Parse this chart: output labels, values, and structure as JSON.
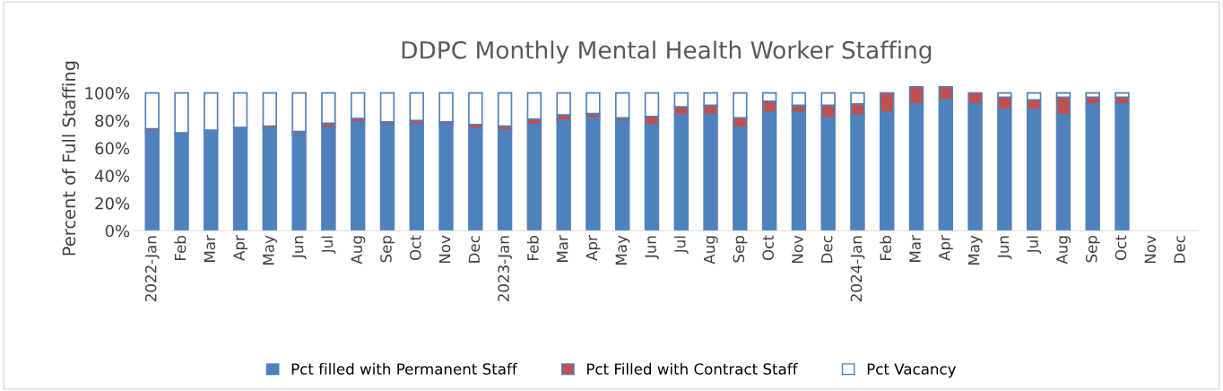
{
  "chart_data": {
    "type": "bar",
    "title": "DDPC Monthly Mental Health Worker Staffing",
    "ylabel": "Percent of Full Staffing",
    "categories": [
      "2022-Jan",
      "Feb",
      "Mar",
      "Apr",
      "May",
      "Jun",
      "Jul",
      "Aug",
      "Sep",
      "Oct",
      "Nov",
      "Dec",
      "2023-Jan",
      "Feb",
      "Mar",
      "Apr",
      "May",
      "Jun",
      "Jul",
      "Aug",
      "Sep",
      "Oct",
      "Nov",
      "Dec",
      "2024-Jan",
      "Feb",
      "Mar",
      "Apr",
      "May",
      "Jun",
      "Jul",
      "Aug",
      "Sep",
      "Oct",
      "Nov",
      "Dec"
    ],
    "series": [
      {
        "name": "Pct filled with Permanent Staff",
        "color": "#4f81bd",
        "values": [
          72,
          70,
          73,
          75,
          74,
          70,
          75,
          79,
          77,
          77,
          77,
          74,
          73,
          77,
          80,
          82,
          80,
          77,
          84,
          84,
          75,
          86,
          86,
          82,
          84,
          86,
          92,
          95,
          92,
          88,
          88,
          84,
          92,
          92,
          null,
          null
        ]
      },
      {
        "name": "Pct Filled with Contract Staff",
        "color": "#c0504d",
        "values": [
          2,
          1,
          0,
          0,
          2,
          2,
          3,
          2.5,
          2,
          3,
          2,
          3,
          3,
          4,
          4,
          3,
          2,
          6,
          6,
          7,
          7,
          8,
          5,
          9,
          8,
          14,
          12.5,
          9.5,
          8,
          9,
          7,
          13,
          5,
          5,
          null,
          null
        ]
      },
      {
        "name": "Pct Vacancy",
        "color": "#ffffff",
        "values": [
          26,
          29,
          27,
          25,
          24,
          28,
          22,
          18.5,
          21,
          20,
          21,
          23,
          24,
          19,
          16,
          15,
          18,
          17,
          10,
          9,
          18,
          6,
          9,
          9,
          8,
          0,
          0,
          0,
          0,
          3,
          5,
          3,
          3,
          3,
          null,
          null
        ]
      }
    ],
    "stacked": true,
    "ylim": [
      0,
      105
    ],
    "yticks": [
      {
        "value": 0,
        "label": "0%"
      },
      {
        "value": 20,
        "label": "20%"
      },
      {
        "value": 40,
        "label": "40%"
      },
      {
        "value": 60,
        "label": "60%"
      },
      {
        "value": 80,
        "label": "80%"
      },
      {
        "value": 100,
        "label": "100%"
      }
    ],
    "grid": false,
    "legend": "bottom"
  }
}
